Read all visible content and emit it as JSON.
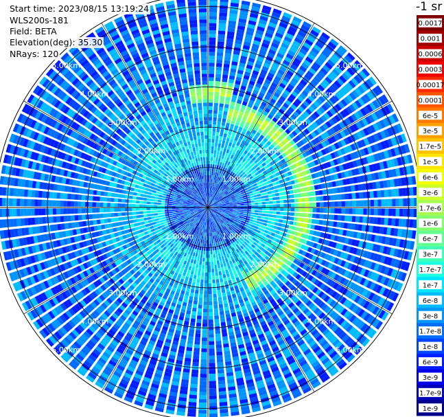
{
  "info": {
    "start_time": "Start time: 2023/08/15 13:19:24",
    "device": "WLS200s-181",
    "field": "Field: BETA",
    "elevation": "Elevation(deg): 35.30",
    "nrays": "NRays: 120"
  },
  "colorbar": {
    "unit_title": "-1 sr",
    "labels": [
      "0.0017",
      "0.001",
      "0.0006",
      "0.0003",
      "0.00017",
      "0.0001",
      "6e-5",
      "3e-5",
      "1.7e-5",
      "1e-5",
      "6e-6",
      "3e-6",
      "1.7e-6",
      "1e-6",
      "6e-7",
      "3e-7",
      "1.7e-7",
      "1e-7",
      "6e-8",
      "3e-8",
      "1.7e-8",
      "1e-8",
      "6e-9",
      "3e-9",
      "1.7e-9",
      "1e-9"
    ],
    "colors": [
      "#7f0000",
      "#a00000",
      "#c80000",
      "#f00000",
      "#ff2a00",
      "#ff5500",
      "#ff7b00",
      "#ffa000",
      "#ffc300",
      "#ffe500",
      "#f2ff00",
      "#cdff2a",
      "#a7ff50",
      "#85ff72",
      "#64ff93",
      "#40ffb7",
      "#1affde",
      "#00e5ff",
      "#00bcff",
      "#0094ff",
      "#006dff",
      "#0044ff",
      "#001cff",
      "#0000e8",
      "#0000bc",
      "#00008a"
    ]
  },
  "chart_data": {
    "type": "polar-ppi",
    "field": "BETA",
    "rays": 120,
    "range_rings_km": [
      1.0,
      2.0,
      3.0,
      4.0,
      5.0
    ],
    "ring_label_suffix": "km",
    "max_range_km": 5.3,
    "value_scale": "log",
    "value_range": [
      1e-09,
      0.0017
    ],
    "features": [
      {
        "name": "elevated-backscatter-arc",
        "azimuth_range_deg": [
          350,
          150
        ],
        "range_km": [
          1.9,
          3.0
        ],
        "level": "1.7e-6 to 3e-6"
      }
    ]
  }
}
